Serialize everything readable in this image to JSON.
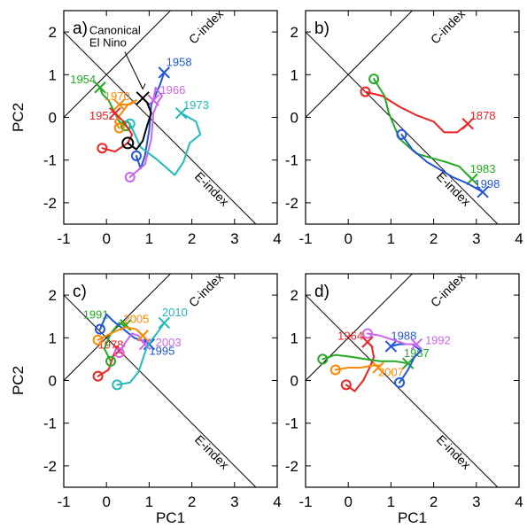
{
  "figure": {
    "xlabel": "PC1",
    "ylabel": "PC2",
    "ref_lines": {
      "c_label": "C-index",
      "e_label": "E-index"
    }
  },
  "chart_data": [
    {
      "type": "line",
      "panel": "a)",
      "xlabel": "PC1",
      "ylabel": "PC2",
      "xlim": [
        -1,
        4
      ],
      "ylim": [
        -2.5,
        2.5
      ],
      "xticks": [
        -1,
        0,
        1,
        2,
        3,
        4
      ],
      "yticks": [
        -2,
        -1,
        0,
        1,
        2
      ],
      "annotation": {
        "lines": [
          "Canonical",
          "El Nino"
        ],
        "at": [
          0.85,
          0.5
        ]
      },
      "series": [
        {
          "name": "1954",
          "color": "#22aa22",
          "points": [
            [
              0.45,
              -0.2
            ],
            [
              0.3,
              -0.1
            ],
            [
              0.2,
              0.1
            ],
            [
              0.05,
              0.4
            ],
            [
              -0.1,
              0.55
            ],
            [
              -0.15,
              0.7
            ]
          ],
          "end_label_at": [
            -0.85,
            0.8
          ]
        },
        {
          "name": "1958",
          "color": "#2255dd",
          "points": [
            [
              0.7,
              -0.9
            ],
            [
              0.8,
              -1.2
            ],
            [
              0.9,
              -0.9
            ],
            [
              1.0,
              -0.3
            ],
            [
              1.05,
              0.3
            ],
            [
              1.25,
              0.75
            ],
            [
              1.35,
              1.05
            ]
          ],
          "end_label_at": [
            1.4,
            1.2
          ]
        },
        {
          "name": "1966",
          "color": "#cc66ee",
          "points": [
            [
              0.55,
              -1.4
            ],
            [
              0.9,
              -1.1
            ],
            [
              1.05,
              -0.5
            ],
            [
              1.1,
              0.1
            ],
            [
              1.2,
              0.35
            ],
            [
              1.3,
              0.5
            ],
            [
              1.15,
              0.7
            ],
            [
              1.1,
              0.4
            ]
          ],
          "end_label_at": [
            1.25,
            0.55
          ]
        },
        {
          "name": "1970",
          "color": "#ff8800",
          "points": [
            [
              0.3,
              -0.25
            ],
            [
              0.2,
              -0.1
            ],
            [
              0.35,
              0.1
            ],
            [
              0.5,
              0.3
            ],
            [
              0.7,
              0.4
            ],
            [
              0.55,
              0.3
            ],
            [
              0.3,
              0.3
            ]
          ],
          "end_label_at": [
            -0.05,
            0.4
          ]
        },
        {
          "name": "1973",
          "color": "#22bbbb",
          "points": [
            [
              0.55,
              -0.15
            ],
            [
              0.8,
              -0.7
            ],
            [
              1.2,
              -1.0
            ],
            [
              1.6,
              -1.35
            ],
            [
              1.8,
              -1.05
            ],
            [
              1.95,
              -0.6
            ],
            [
              2.2,
              -0.4
            ],
            [
              2.1,
              -0.1
            ],
            [
              1.75,
              0.1
            ]
          ],
          "end_label_at": [
            1.8,
            0.2
          ]
        },
        {
          "name": "1952",
          "color": "#ee2222",
          "points": [
            [
              -0.1,
              -0.72
            ],
            [
              0.2,
              -0.8
            ],
            [
              0.5,
              -0.6
            ],
            [
              0.6,
              -0.4
            ],
            [
              0.4,
              -0.1
            ],
            [
              0.2,
              0.1
            ]
          ],
          "end_label_at": [
            -0.4,
            -0.05
          ]
        },
        {
          "name": "",
          "color": "#000000",
          "points": [
            [
              0.5,
              -0.6
            ],
            [
              0.7,
              -0.75
            ],
            [
              0.85,
              -0.55
            ],
            [
              0.95,
              -0.2
            ],
            [
              1.05,
              0.1
            ],
            [
              0.95,
              0.35
            ],
            [
              0.85,
              0.45
            ]
          ],
          "end_label_at": null
        }
      ]
    },
    {
      "type": "line",
      "panel": "b)",
      "xlabel": "PC1",
      "ylabel": "PC2",
      "xlim": [
        -1,
        4
      ],
      "ylim": [
        -2.5,
        2.5
      ],
      "xticks": [
        -1,
        0,
        1,
        2,
        3,
        4
      ],
      "yticks": [
        -2,
        -1,
        0,
        1,
        2
      ],
      "series": [
        {
          "name": "1878",
          "color": "#ee2222",
          "points": [
            [
              0.4,
              0.6
            ],
            [
              0.8,
              0.5
            ],
            [
              1.2,
              0.25
            ],
            [
              1.6,
              0.05
            ],
            [
              2.0,
              -0.1
            ],
            [
              2.25,
              -0.35
            ],
            [
              2.55,
              -0.35
            ],
            [
              2.8,
              -0.15
            ]
          ],
          "end_label_at": [
            2.85,
            -0.05
          ]
        },
        {
          "name": "1983",
          "color": "#22aa22",
          "points": [
            [
              0.6,
              0.9
            ],
            [
              0.85,
              0.5
            ],
            [
              0.95,
              0.1
            ],
            [
              1.2,
              -0.5
            ],
            [
              1.6,
              -0.85
            ],
            [
              1.95,
              -0.95
            ],
            [
              2.3,
              -1.05
            ],
            [
              2.6,
              -1.15
            ],
            [
              2.9,
              -1.45
            ]
          ],
          "end_label_at": [
            2.85,
            -1.3
          ]
        },
        {
          "name": "1998",
          "color": "#2255dd",
          "points": [
            [
              1.25,
              -0.4
            ],
            [
              1.5,
              -0.75
            ],
            [
              1.85,
              -1.05
            ],
            [
              2.2,
              -1.25
            ],
            [
              2.45,
              -1.4
            ],
            [
              2.8,
              -1.55
            ],
            [
              3.15,
              -1.75
            ]
          ],
          "end_label_at": [
            2.95,
            -1.65
          ]
        }
      ]
    },
    {
      "type": "line",
      "panel": "c)",
      "xlabel": "PC1",
      "ylabel": "PC2",
      "xlim": [
        -1,
        4
      ],
      "ylim": [
        -2.5,
        2.5
      ],
      "xticks": [
        -1,
        0,
        1,
        2,
        3,
        4
      ],
      "yticks": [
        -2,
        -1,
        0,
        1,
        2
      ],
      "series": [
        {
          "name": "1978",
          "color": "#ee2222",
          "points": [
            [
              -0.2,
              0.1
            ],
            [
              0.05,
              0.25
            ],
            [
              0.15,
              0.55
            ],
            [
              0.25,
              0.8
            ],
            [
              0.3,
              0.7
            ]
          ],
          "end_label_at": [
            -0.2,
            0.75
          ]
        },
        {
          "name": "1991",
          "color": "#22aa22",
          "points": [
            [
              0.1,
              0.45
            ],
            [
              -0.05,
              0.75
            ],
            [
              0.1,
              1.1
            ],
            [
              0.3,
              1.35
            ],
            [
              0.55,
              1.2
            ],
            [
              0.45,
              1.3
            ]
          ],
          "end_label_at": [
            -0.55,
            1.45
          ]
        },
        {
          "name": "1995",
          "color": "#2255dd",
          "points": [
            [
              -0.15,
              1.2
            ],
            [
              0.0,
              1.55
            ],
            [
              0.15,
              1.4
            ],
            [
              0.4,
              1.2
            ],
            [
              0.65,
              1.0
            ],
            [
              0.9,
              0.9
            ],
            [
              1.0,
              0.85
            ]
          ],
          "end_label_at": [
            1.0,
            0.6
          ]
        },
        {
          "name": "2003",
          "color": "#cc66ee",
          "points": [
            [
              0.3,
              0.65
            ],
            [
              0.45,
              0.9
            ],
            [
              0.6,
              1.1
            ],
            [
              0.75,
              1.05
            ],
            [
              0.9,
              0.85
            ]
          ],
          "end_label_at": [
            1.15,
            0.8
          ]
        },
        {
          "name": "2005",
          "color": "#ff8800",
          "points": [
            [
              -0.2,
              0.95
            ],
            [
              0.0,
              1.05
            ],
            [
              0.2,
              1.15
            ],
            [
              0.45,
              1.25
            ],
            [
              0.7,
              1.2
            ],
            [
              0.85,
              1.05
            ]
          ],
          "end_label_at": [
            0.4,
            1.35
          ]
        },
        {
          "name": "2010",
          "color": "#22bbbb",
          "points": [
            [
              0.25,
              -0.1
            ],
            [
              0.55,
              -0.05
            ],
            [
              0.75,
              0.2
            ],
            [
              0.85,
              0.5
            ],
            [
              0.95,
              0.8
            ],
            [
              1.1,
              1.0
            ],
            [
              1.25,
              1.2
            ],
            [
              1.35,
              1.35
            ]
          ],
          "end_label_at": [
            1.3,
            1.5
          ]
        }
      ]
    },
    {
      "type": "line",
      "panel": "d)",
      "xlabel": "PC1",
      "ylabel": "PC2",
      "xlim": [
        -1,
        4
      ],
      "ylim": [
        -2.5,
        2.5
      ],
      "xticks": [
        -1,
        0,
        1,
        2,
        3,
        4
      ],
      "yticks": [
        -2,
        -1,
        0,
        1,
        2
      ],
      "series": [
        {
          "name": "1964",
          "color": "#ee2222",
          "points": [
            [
              -0.05,
              -0.1
            ],
            [
              0.15,
              -0.25
            ],
            [
              0.35,
              0.0
            ],
            [
              0.5,
              0.3
            ],
            [
              0.6,
              0.55
            ],
            [
              0.55,
              0.8
            ],
            [
              0.45,
              0.9
            ]
          ],
          "end_label_at": [
            -0.25,
            0.95
          ]
        },
        {
          "name": "1987",
          "color": "#22aa22",
          "points": [
            [
              -0.6,
              0.5
            ],
            [
              -0.3,
              0.6
            ],
            [
              0.1,
              0.55
            ],
            [
              0.4,
              0.5
            ],
            [
              0.75,
              0.45
            ],
            [
              1.1,
              0.45
            ],
            [
              1.4,
              0.4
            ]
          ],
          "end_label_at": [
            1.3,
            0.55
          ]
        },
        {
          "name": "1988",
          "color": "#2255dd",
          "points": [
            [
              1.2,
              -0.05
            ],
            [
              1.4,
              0.25
            ],
            [
              1.55,
              0.55
            ],
            [
              1.7,
              0.7
            ],
            [
              1.5,
              0.85
            ],
            [
              1.2,
              0.85
            ],
            [
              1.0,
              0.8
            ]
          ],
          "end_label_at": [
            1.0,
            0.95
          ]
        },
        {
          "name": "1992",
          "color": "#cc66ee",
          "points": [
            [
              0.45,
              1.1
            ],
            [
              0.75,
              1.05
            ],
            [
              1.05,
              0.95
            ],
            [
              1.35,
              0.85
            ],
            [
              1.6,
              0.85
            ]
          ],
          "end_label_at": [
            1.8,
            0.85
          ]
        },
        {
          "name": "2007",
          "color": "#ff8800",
          "points": [
            [
              -0.3,
              0.25
            ],
            [
              0.0,
              0.3
            ],
            [
              0.3,
              0.3
            ],
            [
              0.55,
              0.35
            ],
            [
              0.75,
              0.35
            ],
            [
              0.7,
              0.3
            ]
          ],
          "end_label_at": [
            0.7,
            0.1
          ]
        }
      ]
    }
  ]
}
